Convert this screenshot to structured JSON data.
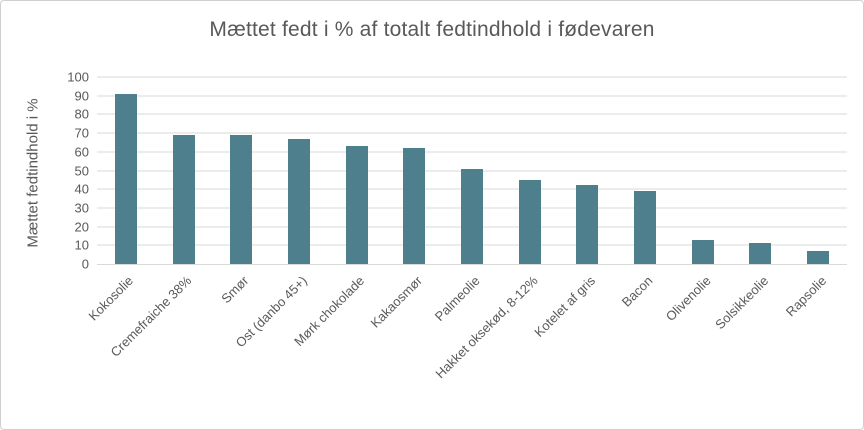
{
  "window": {
    "background": "#ffffff",
    "border_color": "#d0cece"
  },
  "chart_data": {
    "type": "bar",
    "title": "Mættet fedt i % af totalt fedtindhold i fødevaren",
    "ylabel": "Mættet fedtindhold i %",
    "xlabel": "",
    "categories": [
      "Kokosolie",
      "Cremefraiche 38%",
      "Smør",
      "Ost (danbo 45+)",
      "Mørk chokolade",
      "Kakaosmør",
      "Palmeolie",
      "Hakket oksekød, 8-12%",
      "Kotelet af gris",
      "Bacon",
      "Olivenolie",
      "Solsikkeolie",
      "Rapsolie"
    ],
    "values": [
      91,
      69,
      69,
      67,
      63,
      62,
      51,
      45,
      42,
      39,
      13,
      11,
      7
    ],
    "ylim": [
      0,
      100
    ],
    "yticks": [
      0,
      10,
      20,
      30,
      40,
      50,
      60,
      70,
      80,
      90,
      100
    ],
    "grid": true,
    "legend": false,
    "bar_color": "#4d7f8c",
    "text_color": "#595959",
    "gridline_color": "#d9d9d9"
  }
}
